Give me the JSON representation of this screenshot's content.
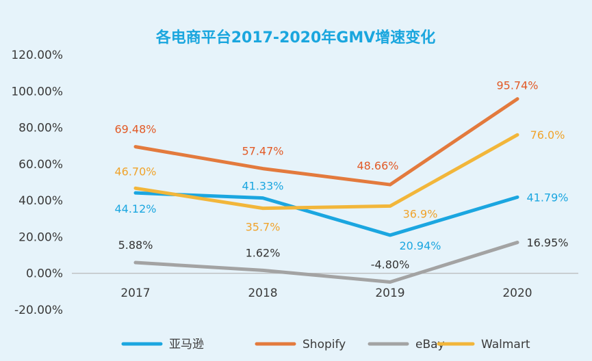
{
  "chart_data": {
    "type": "line",
    "title": "各电商平台2017-2020年GMV增速变化",
    "categories": [
      "2017",
      "2018",
      "2019",
      "2020"
    ],
    "ylim": [
      -20,
      120
    ],
    "y_ticks": [
      "120.00%",
      "100.00%",
      "80.00%",
      "60.00%",
      "40.00%",
      "20.00%",
      "0.00%",
      "-20.00%"
    ],
    "grid": false,
    "legend_position": "bottom",
    "series": [
      {
        "name": "亚马逊",
        "color": "#1ba6e0",
        "values": [
          44.12,
          41.33,
          20.94,
          41.79
        ],
        "labels": [
          "44.12%",
          "41.33%",
          "20.94%",
          "41.79%"
        ]
      },
      {
        "name": "Shopify",
        "color": "#e37a3d",
        "values": [
          69.48,
          57.47,
          48.66,
          95.74
        ],
        "labels": [
          "69.48%",
          "57.47%",
          "48.66%",
          "95.74%"
        ]
      },
      {
        "name": "eBay",
        "color": "#a3a3a3",
        "values": [
          5.88,
          1.62,
          -4.8,
          16.95
        ],
        "labels": [
          "5.88%",
          "1.62%",
          "-4.80%",
          "16.95%"
        ]
      },
      {
        "name": "Walmart",
        "color": "#f2b63a",
        "values": [
          46.7,
          35.7,
          36.9,
          76.0
        ],
        "labels": [
          "46.70%",
          "35.7%",
          "36.9%",
          "76.0%"
        ]
      }
    ],
    "label_colors": {
      "亚马逊": "#1ba6e0",
      "Shopify": "#e25a26",
      "eBay": "#333333",
      "Walmart": "#f0a32b"
    }
  }
}
